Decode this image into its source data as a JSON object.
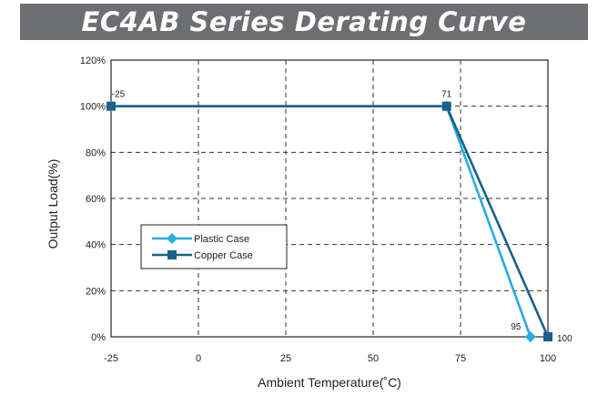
{
  "title": "EC4AB Series Derating Curve",
  "chart_data": {
    "type": "line",
    "title": "EC4AB Series Derating Curve",
    "xlabel": "Ambient Temperature(˚C)",
    "ylabel": "Output Load(%)",
    "xlim": [
      -25,
      100
    ],
    "ylim": [
      0,
      120
    ],
    "xticks": [
      -25,
      0,
      25,
      50,
      75,
      100
    ],
    "xtick_labels": [
      "-25",
      "0",
      "25",
      "50",
      "75",
      "100"
    ],
    "yticks": [
      0,
      20,
      40,
      60,
      80,
      100,
      120
    ],
    "ytick_labels": [
      "0%",
      "20%",
      "40%",
      "60%",
      "80%",
      "100%",
      "120%"
    ],
    "grid": "dashed",
    "legend_position": "left",
    "series": [
      {
        "name": "Plastic Case",
        "color": "#29abe2",
        "marker": "diamond",
        "x": [
          -25,
          71,
          95
        ],
        "y": [
          100,
          100,
          0
        ]
      },
      {
        "name": "Copper Case",
        "color": "#1b6187",
        "marker": "square",
        "x": [
          -25,
          71,
          100
        ],
        "y": [
          100,
          100,
          0
        ]
      }
    ],
    "point_labels": [
      {
        "x": -25,
        "y": 100,
        "text": "-25"
      },
      {
        "x": 71,
        "y": 100,
        "text": "71"
      },
      {
        "x": 95,
        "y": 0,
        "text": "95"
      },
      {
        "x": 100,
        "y": 0,
        "text": "100"
      }
    ]
  }
}
